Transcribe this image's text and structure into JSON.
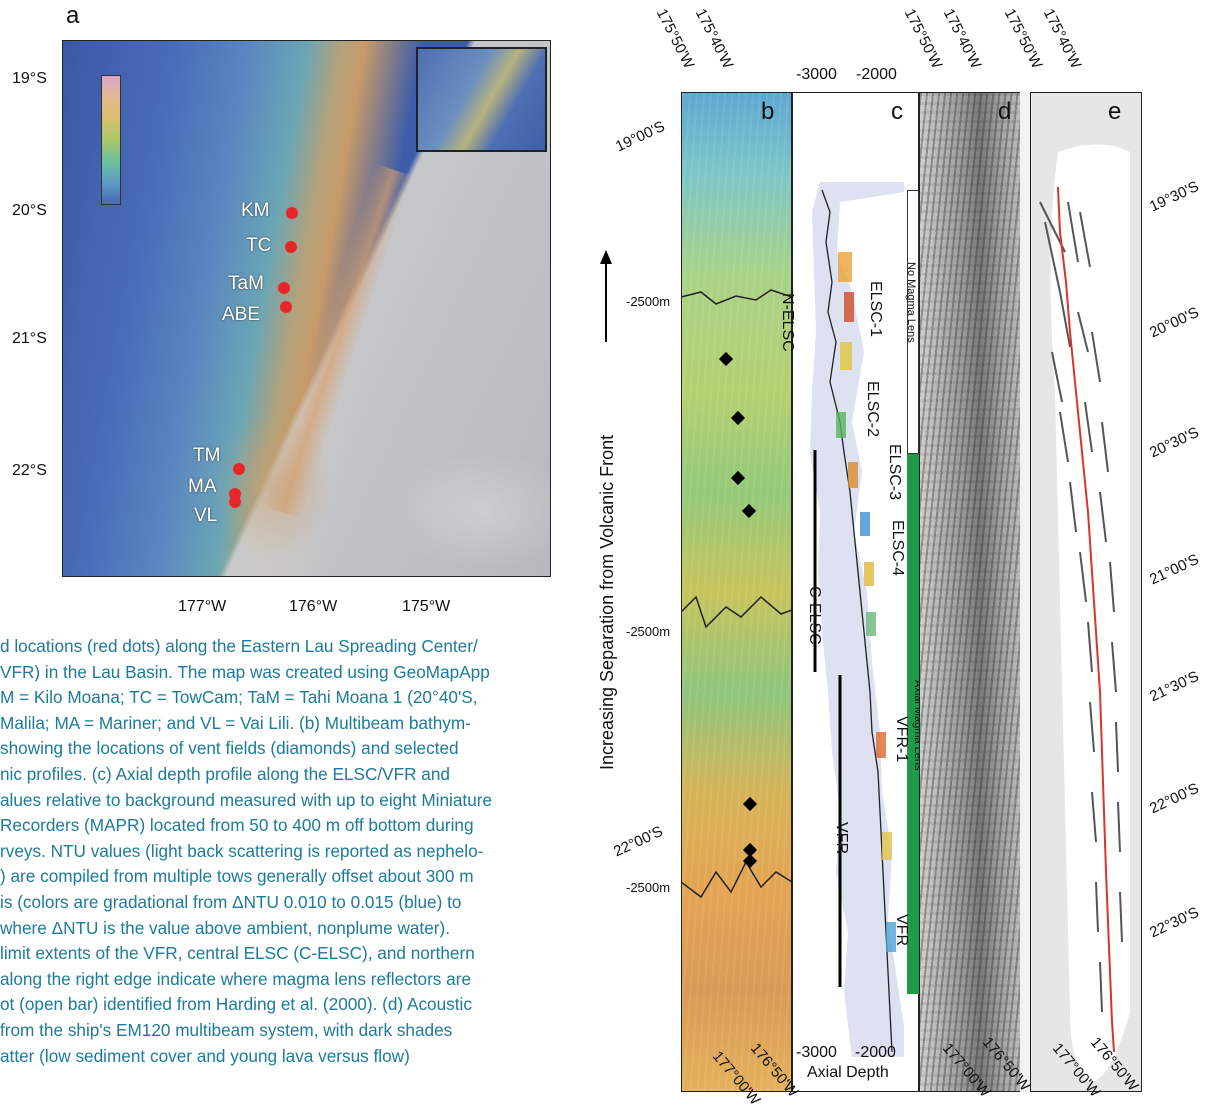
{
  "panel_a": {
    "label": "a",
    "lat_labels": [
      "19°S",
      "20°S",
      "21°S",
      "22°S"
    ],
    "lon_labels": [
      "177°W",
      "176°W",
      "175°W"
    ],
    "sites": [
      "KM",
      "TC",
      "TaM",
      "ABE",
      "TM",
      "MA",
      "VL"
    ],
    "colors": {
      "site_dot": "#e8262a",
      "sea": "#3d5fa8",
      "ridge": "#b9b9b9"
    }
  },
  "top_lon_labels": [
    "175°50'W",
    "175°40'W"
  ],
  "bottom_lon_labels": [
    "177°00'W",
    "176°50'W"
  ],
  "panel_b": {
    "label": "b",
    "depth_labels": [
      "-2500m",
      "-2500m",
      "-2500m"
    ],
    "left_lat_labels": [
      "19°00'S",
      "22°00'S"
    ],
    "vent_field_count": 7
  },
  "panel_c": {
    "label": "c",
    "depth_axis_top": [
      "-3000",
      "-2000"
    ],
    "depth_axis_bottom": [
      "-3000",
      "-2000"
    ],
    "axis_title": "Axial Depth",
    "segments": [
      "N-ELSC",
      "C-ELSC",
      "VFR"
    ],
    "plume_labels": [
      "ELSC-1",
      "ELSC-2",
      "ELSC-3",
      "ELSC-4",
      "VFR-1",
      "VFR",
      "VFR"
    ],
    "lens_labels": [
      "No Magma Lens",
      "Axial Magma Lens"
    ],
    "colors": {
      "magma_lens": "#1f9a4a"
    }
  },
  "panel_d": {
    "label": "d"
  },
  "panel_e": {
    "label": "e",
    "right_lat_labels": [
      "19°30'S",
      "20°00'S",
      "20°30'S",
      "21°00'S",
      "21°30'S",
      "22°00'S",
      "22°30'S"
    ],
    "colors": {
      "axis_trace": "#d9342b"
    }
  },
  "vertical_axis_title": "Increasing Separation from Volcanic Front",
  "caption_lines": [
    "d locations (red dots) along the Eastern Lau Spreading Center/",
    "VFR) in the Lau Basin. The map was created using GeoMapApp",
    "M = Kilo Moana; TC = TowCam; TaM = Tahi Moana 1 (20°40'S,",
    " Malila; MA = Mariner; and VL = Vai Lili. (b) Multibeam bathym-",
    " showing the locations of vent fields (diamonds) and selected",
    "nic profiles. (c) Axial depth profile along the ELSC/VFR and",
    "alues relative to background measured with up to eight Miniature",
    " Recorders (MAPR) located from 50 to 400 m off bottom during",
    "rveys. NTU values (light back scattering is reported as nephelo-",
    ") are compiled from multiple tows generally offset about 300 m",
    "is (colors are gradational from ΔNTU 0.010 to 0.015 (blue) to",
    "where ΔNTU is the value above ambient, nonplume water).",
    "limit extents of the VFR, central ELSC (C-ELSC), and northern",
    "along the right edge indicate where magma lens reflectors are",
    "ot (open bar) identified from Harding et al. (2000). (d) Acoustic",
    "from the ship's EM120 multibeam system, with dark shades",
    "atter (low sediment cover and young lava versus flow)"
  ]
}
